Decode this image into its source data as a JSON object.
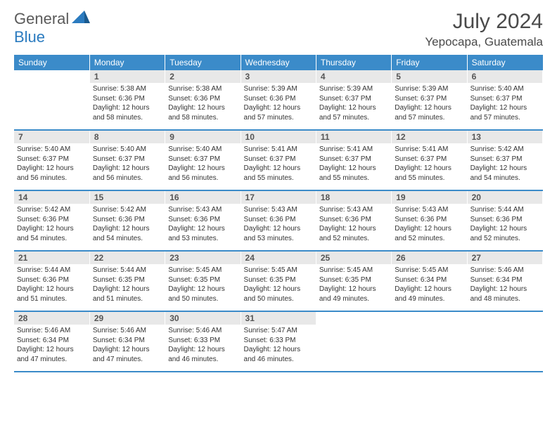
{
  "logo": {
    "text1": "General",
    "text2": "Blue"
  },
  "title": "July 2024",
  "location": "Yepocapa, Guatemala",
  "colors": {
    "header_bg": "#3b8bc9",
    "header_text": "#ffffff",
    "daynum_bg": "#e8e8e8",
    "row_border": "#3b8bc9",
    "text": "#333333",
    "logo_gray": "#5a5a5a",
    "logo_blue": "#2b7bbf"
  },
  "weekdays": [
    "Sunday",
    "Monday",
    "Tuesday",
    "Wednesday",
    "Thursday",
    "Friday",
    "Saturday"
  ],
  "weeks": [
    [
      null,
      {
        "n": "1",
        "sr": "5:38 AM",
        "ss": "6:36 PM",
        "dl": "12 hours and 58 minutes."
      },
      {
        "n": "2",
        "sr": "5:38 AM",
        "ss": "6:36 PM",
        "dl": "12 hours and 58 minutes."
      },
      {
        "n": "3",
        "sr": "5:39 AM",
        "ss": "6:36 PM",
        "dl": "12 hours and 57 minutes."
      },
      {
        "n": "4",
        "sr": "5:39 AM",
        "ss": "6:37 PM",
        "dl": "12 hours and 57 minutes."
      },
      {
        "n": "5",
        "sr": "5:39 AM",
        "ss": "6:37 PM",
        "dl": "12 hours and 57 minutes."
      },
      {
        "n": "6",
        "sr": "5:40 AM",
        "ss": "6:37 PM",
        "dl": "12 hours and 57 minutes."
      }
    ],
    [
      {
        "n": "7",
        "sr": "5:40 AM",
        "ss": "6:37 PM",
        "dl": "12 hours and 56 minutes."
      },
      {
        "n": "8",
        "sr": "5:40 AM",
        "ss": "6:37 PM",
        "dl": "12 hours and 56 minutes."
      },
      {
        "n": "9",
        "sr": "5:40 AM",
        "ss": "6:37 PM",
        "dl": "12 hours and 56 minutes."
      },
      {
        "n": "10",
        "sr": "5:41 AM",
        "ss": "6:37 PM",
        "dl": "12 hours and 55 minutes."
      },
      {
        "n": "11",
        "sr": "5:41 AM",
        "ss": "6:37 PM",
        "dl": "12 hours and 55 minutes."
      },
      {
        "n": "12",
        "sr": "5:41 AM",
        "ss": "6:37 PM",
        "dl": "12 hours and 55 minutes."
      },
      {
        "n": "13",
        "sr": "5:42 AM",
        "ss": "6:37 PM",
        "dl": "12 hours and 54 minutes."
      }
    ],
    [
      {
        "n": "14",
        "sr": "5:42 AM",
        "ss": "6:36 PM",
        "dl": "12 hours and 54 minutes."
      },
      {
        "n": "15",
        "sr": "5:42 AM",
        "ss": "6:36 PM",
        "dl": "12 hours and 54 minutes."
      },
      {
        "n": "16",
        "sr": "5:43 AM",
        "ss": "6:36 PM",
        "dl": "12 hours and 53 minutes."
      },
      {
        "n": "17",
        "sr": "5:43 AM",
        "ss": "6:36 PM",
        "dl": "12 hours and 53 minutes."
      },
      {
        "n": "18",
        "sr": "5:43 AM",
        "ss": "6:36 PM",
        "dl": "12 hours and 52 minutes."
      },
      {
        "n": "19",
        "sr": "5:43 AM",
        "ss": "6:36 PM",
        "dl": "12 hours and 52 minutes."
      },
      {
        "n": "20",
        "sr": "5:44 AM",
        "ss": "6:36 PM",
        "dl": "12 hours and 52 minutes."
      }
    ],
    [
      {
        "n": "21",
        "sr": "5:44 AM",
        "ss": "6:36 PM",
        "dl": "12 hours and 51 minutes."
      },
      {
        "n": "22",
        "sr": "5:44 AM",
        "ss": "6:35 PM",
        "dl": "12 hours and 51 minutes."
      },
      {
        "n": "23",
        "sr": "5:45 AM",
        "ss": "6:35 PM",
        "dl": "12 hours and 50 minutes."
      },
      {
        "n": "24",
        "sr": "5:45 AM",
        "ss": "6:35 PM",
        "dl": "12 hours and 50 minutes."
      },
      {
        "n": "25",
        "sr": "5:45 AM",
        "ss": "6:35 PM",
        "dl": "12 hours and 49 minutes."
      },
      {
        "n": "26",
        "sr": "5:45 AM",
        "ss": "6:34 PM",
        "dl": "12 hours and 49 minutes."
      },
      {
        "n": "27",
        "sr": "5:46 AM",
        "ss": "6:34 PM",
        "dl": "12 hours and 48 minutes."
      }
    ],
    [
      {
        "n": "28",
        "sr": "5:46 AM",
        "ss": "6:34 PM",
        "dl": "12 hours and 47 minutes."
      },
      {
        "n": "29",
        "sr": "5:46 AM",
        "ss": "6:34 PM",
        "dl": "12 hours and 47 minutes."
      },
      {
        "n": "30",
        "sr": "5:46 AM",
        "ss": "6:33 PM",
        "dl": "12 hours and 46 minutes."
      },
      {
        "n": "31",
        "sr": "5:47 AM",
        "ss": "6:33 PM",
        "dl": "12 hours and 46 minutes."
      },
      null,
      null,
      null
    ]
  ],
  "labels": {
    "sunrise": "Sunrise:",
    "sunset": "Sunset:",
    "daylight": "Daylight:"
  }
}
